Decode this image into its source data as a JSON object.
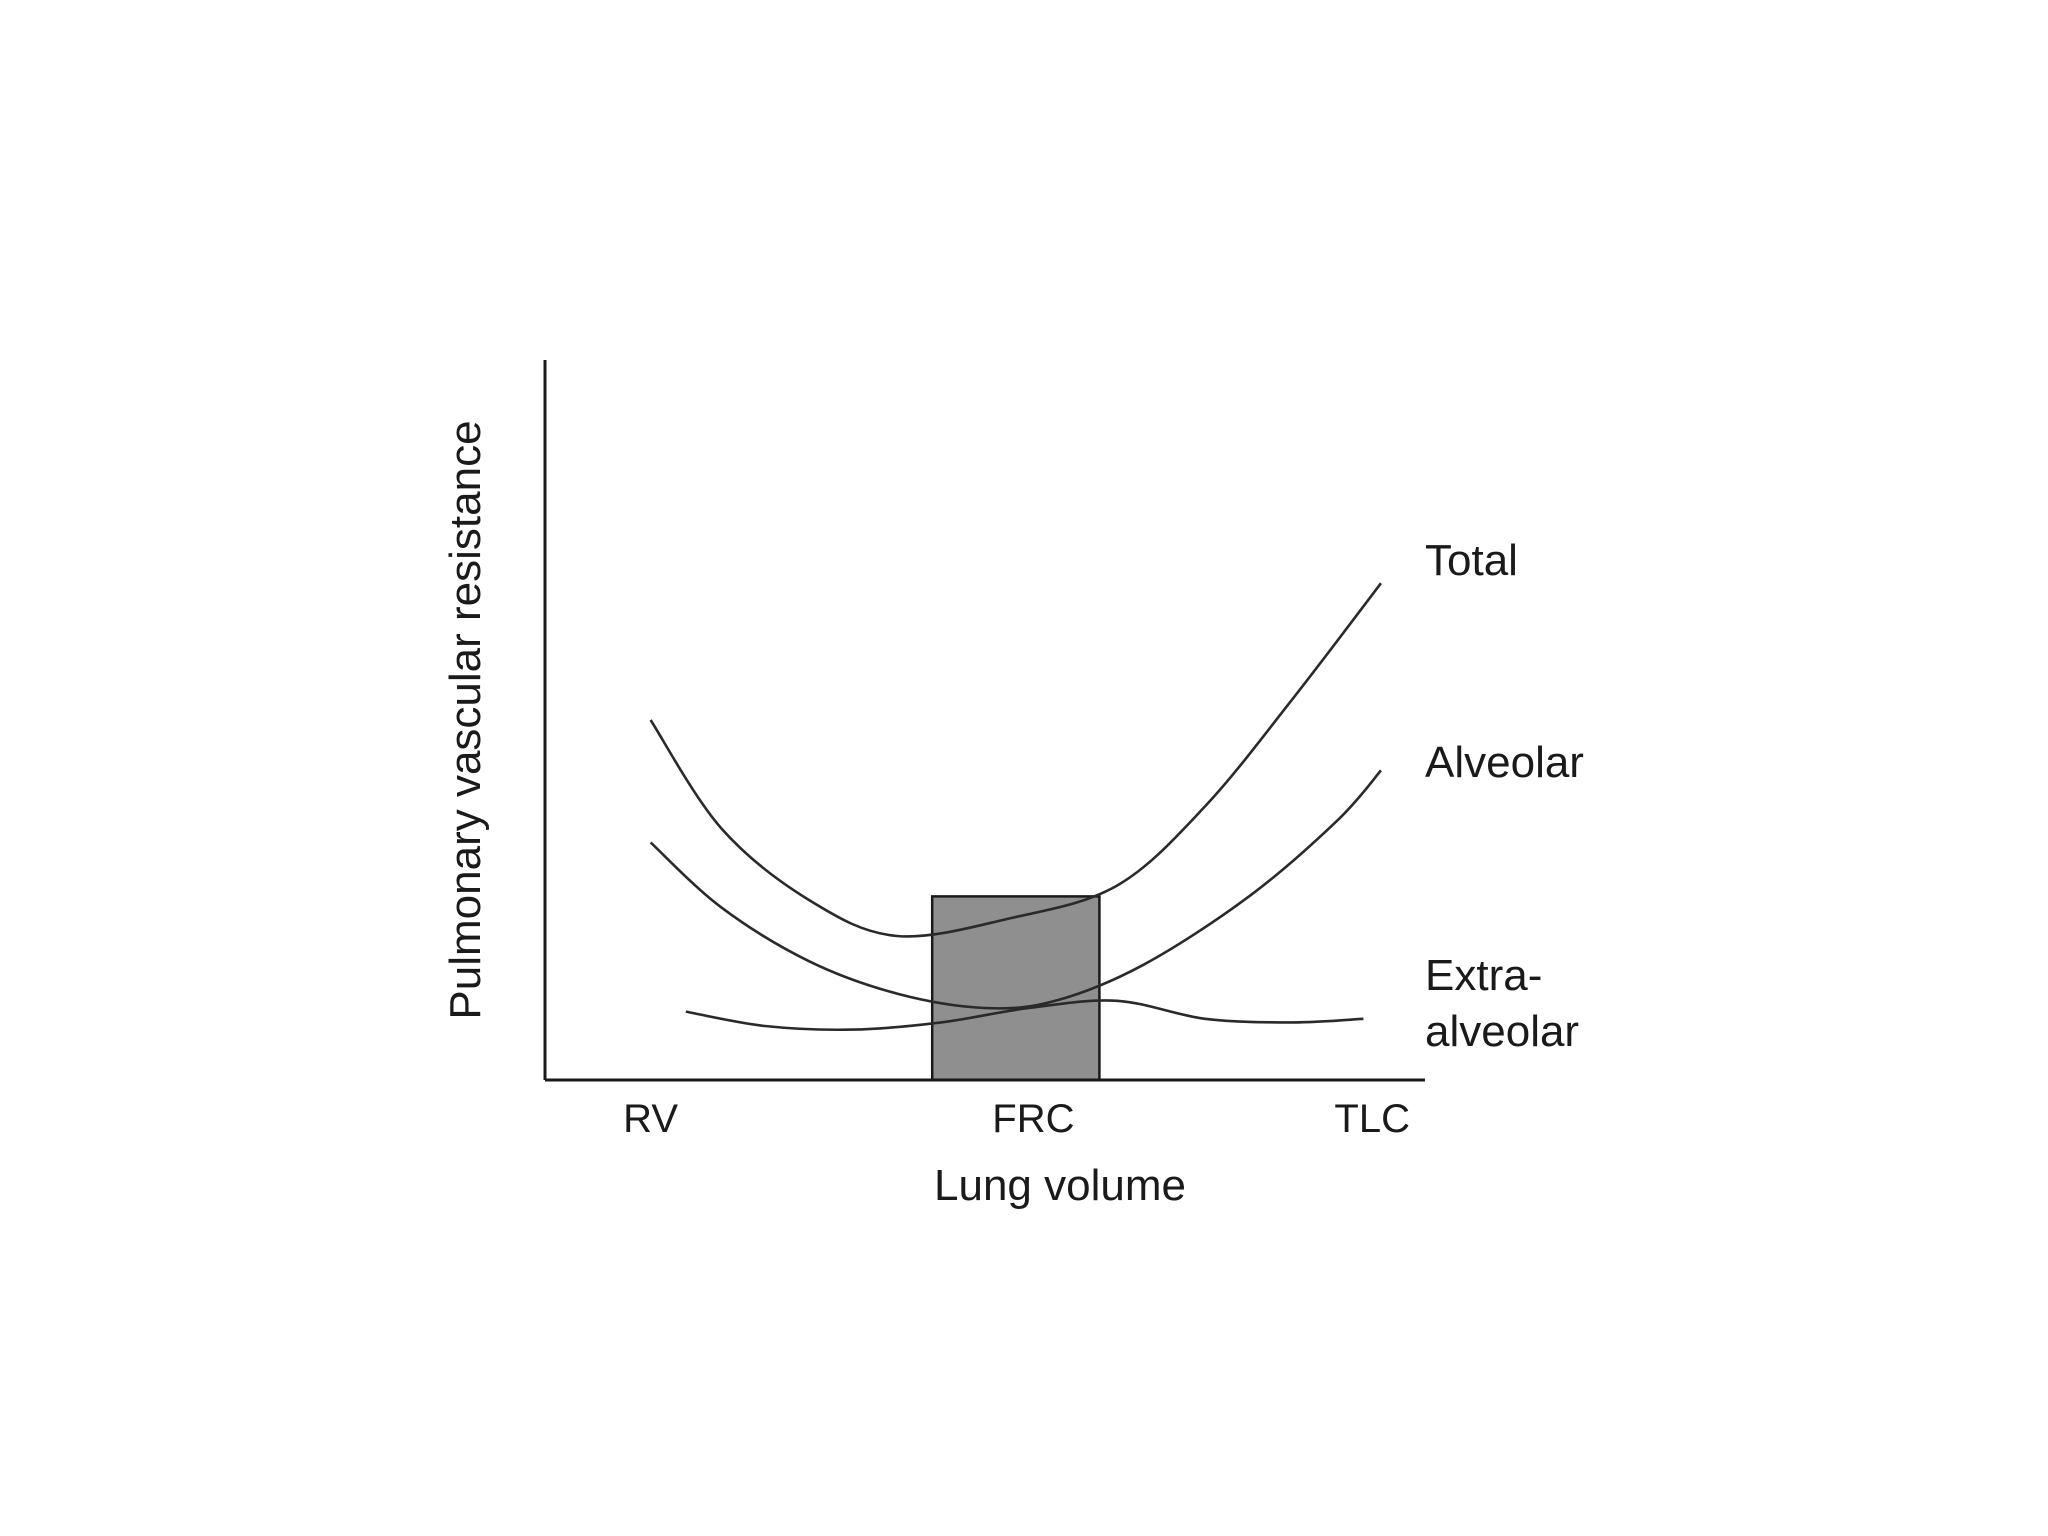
{
  "chart_data": {
    "type": "line",
    "title": "",
    "xlabel": "Lung volume",
    "ylabel": "Pulmonary vascular resistance",
    "x_ticks": [
      "RV",
      "FRC",
      "TLC"
    ],
    "xlim": [
      0,
      1
    ],
    "ylim": [
      0,
      1
    ],
    "grid": false,
    "highlight": {
      "label": "",
      "x_range": [
        0.44,
        0.63
      ],
      "y_top": 0.255,
      "fill_color": "#8f8f8f"
    },
    "series": [
      {
        "name": "Total",
        "line_color": "#2a2a2a",
        "points": [
          [
            0.12,
            0.5
          ],
          [
            0.2,
            0.35
          ],
          [
            0.3,
            0.25
          ],
          [
            0.4,
            0.2
          ],
          [
            0.53,
            0.225
          ],
          [
            0.65,
            0.27
          ],
          [
            0.75,
            0.38
          ],
          [
            0.85,
            0.53
          ],
          [
            0.95,
            0.69
          ]
        ]
      },
      {
        "name": "Alveolar",
        "line_color": "#2a2a2a",
        "points": [
          [
            0.12,
            0.33
          ],
          [
            0.2,
            0.24
          ],
          [
            0.3,
            0.165
          ],
          [
            0.4,
            0.12
          ],
          [
            0.5,
            0.1
          ],
          [
            0.58,
            0.11
          ],
          [
            0.68,
            0.16
          ],
          [
            0.8,
            0.255
          ],
          [
            0.9,
            0.36
          ],
          [
            0.95,
            0.43
          ]
        ]
      },
      {
        "name": "Extra-\nalveolar",
        "label_lines": [
          "Extra-",
          "alveolar"
        ],
        "line_color": "#2a2a2a",
        "points": [
          [
            0.16,
            0.095
          ],
          [
            0.25,
            0.075
          ],
          [
            0.35,
            0.07
          ],
          [
            0.45,
            0.08
          ],
          [
            0.55,
            0.1
          ],
          [
            0.65,
            0.11
          ],
          [
            0.75,
            0.085
          ],
          [
            0.85,
            0.08
          ],
          [
            0.93,
            0.085
          ]
        ]
      }
    ]
  }
}
